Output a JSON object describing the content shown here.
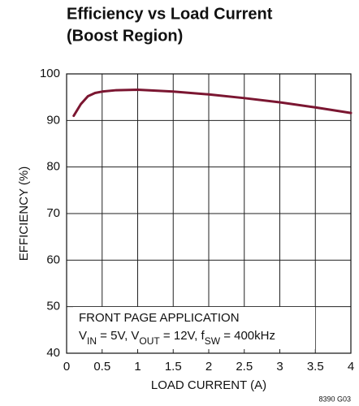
{
  "chart_data": {
    "type": "line",
    "title": [
      "Efficiency vs Load Current",
      "(Boost Region)"
    ],
    "xlabel": "LOAD CURRENT (A)",
    "ylabel": "EFFICIENCY (%)",
    "annotation": [
      [
        {
          "text": "FRONT PAGE APPLICATION"
        }
      ],
      [
        {
          "text": "V"
        },
        {
          "text": "IN",
          "sub": true
        },
        {
          "text": " = 5V, V"
        },
        {
          "text": "OUT",
          "sub": true
        },
        {
          "text": " = 12V, f"
        },
        {
          "text": "SW",
          "sub": true
        },
        {
          "text": " = 400kHz"
        }
      ]
    ],
    "footnote": "8390 G03",
    "x": [
      0.1,
      0.2,
      0.3,
      0.4,
      0.5,
      0.7,
      1.0,
      1.5,
      2.0,
      2.5,
      3.0,
      3.5,
      4.0
    ],
    "series": [
      {
        "name": "Efficiency",
        "color": "#7b1631",
        "values": [
          91,
          93.5,
          95.2,
          95.9,
          96.2,
          96.5,
          96.6,
          96.2,
          95.6,
          94.8,
          93.9,
          92.8,
          91.6
        ]
      }
    ],
    "xlim": [
      0,
      4
    ],
    "xticks": [
      0,
      0.5,
      1,
      1.5,
      2,
      2.5,
      3,
      3.5,
      4
    ],
    "ylim": [
      40,
      100
    ],
    "yticks": [
      40,
      50,
      60,
      70,
      80,
      90,
      100
    ],
    "grid": true
  }
}
